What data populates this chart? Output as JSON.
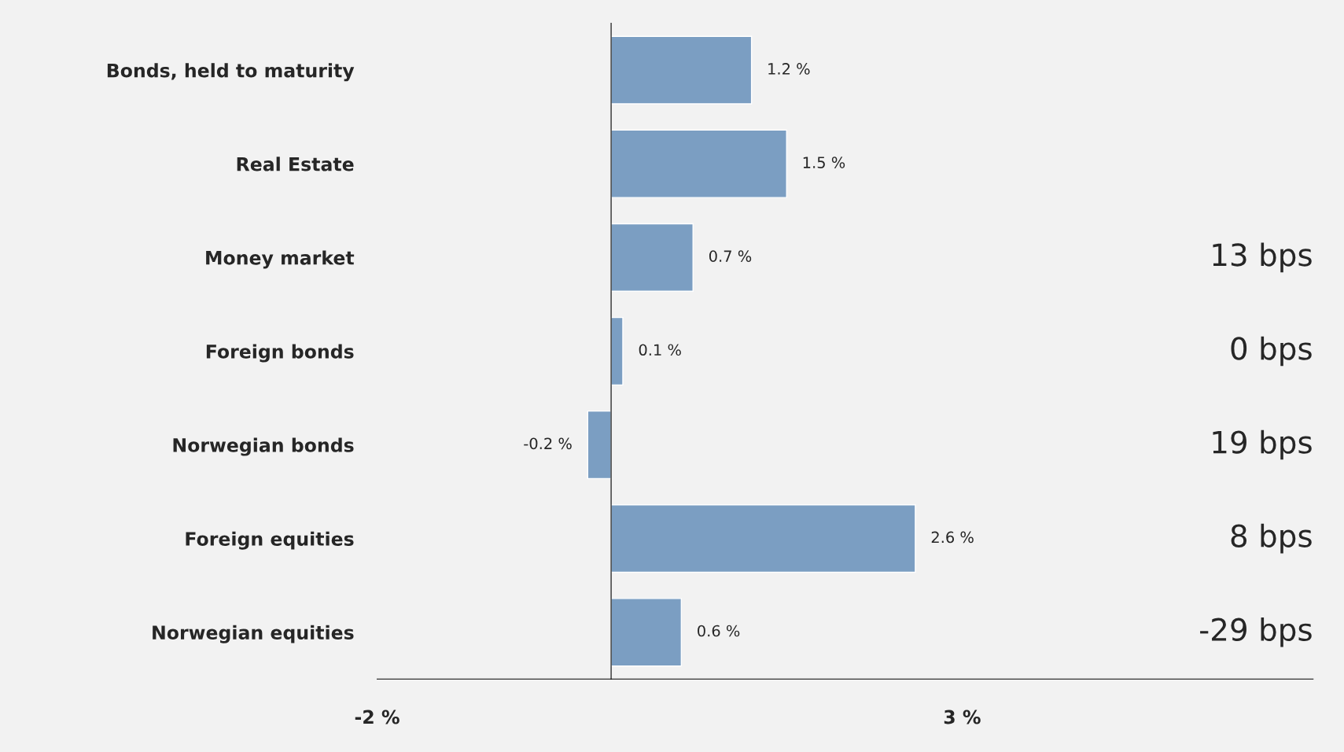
{
  "chart_data": {
    "type": "bar",
    "orientation": "horizontal",
    "categories": [
      "Bonds, held to maturity",
      "Real Estate",
      "Money market",
      "Foreign bonds",
      "Norwegian bonds",
      "Foreign equities",
      "Norwegian equities"
    ],
    "values": [
      1.2,
      1.5,
      0.7,
      0.1,
      -0.2,
      2.6,
      0.6
    ],
    "value_labels": [
      "1.2 %",
      "1.5 %",
      "0.7 %",
      "0.1 %",
      "-0.2 %",
      "2.6 %",
      "0.6 %"
    ],
    "color": "#7b9ec2",
    "xlim": [
      -2,
      6
    ],
    "xticks": [
      {
        "value": -2,
        "label": "-2 %"
      },
      {
        "value": 3,
        "label": "3 %"
      }
    ],
    "annotations": [
      "13 bps",
      "0 bps",
      "19 bps",
      "8 bps",
      "-29 bps"
    ],
    "grid": false,
    "legend": false
  }
}
